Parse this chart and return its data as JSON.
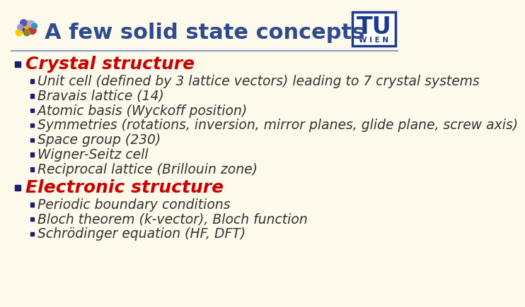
{
  "title": "A few solid state concepts",
  "background_color": "#FDFAEC",
  "title_color": "#2E4B8F",
  "title_fontsize": 22,
  "header_line_color": "#8B9DC3",
  "section_color": "#CC0000",
  "section_fontsize": 18,
  "bullet_color": "#333333",
  "bullet_fontsize": 13.5,
  "bullet_marker_color": "#CC0000",
  "sections": [
    {
      "title": "Crystal structure",
      "bullets": [
        "Unit cell (defined by 3 lattice vectors) leading to 7 crystal systems",
        "Bravais lattice (14)",
        "Atomic basis (Wyckoff position)",
        "Symmetries (rotations, inversion, mirror planes, glide plane, screw axis)",
        "Space group (230)",
        "Wigner-Seitz cell",
        "Reciprocal lattice (Brillouin zone)"
      ]
    },
    {
      "title": "Electronic structure",
      "bullets": [
        "Periodic boundary conditions",
        "Bloch theorem (k-vector), Bloch function",
        "Schrödinger equation (HF, DFT)"
      ]
    }
  ],
  "tu_box_color": "#1E3A8A",
  "tu_text": "TU",
  "wien_text": "W I E N",
  "atom_colors": [
    "#4444BB",
    "#FFAA00",
    "#CC4444",
    "#44AA44",
    "#AAAAFF",
    "#888800",
    "#6666CC",
    "#FFCC00",
    "#3399CC"
  ]
}
